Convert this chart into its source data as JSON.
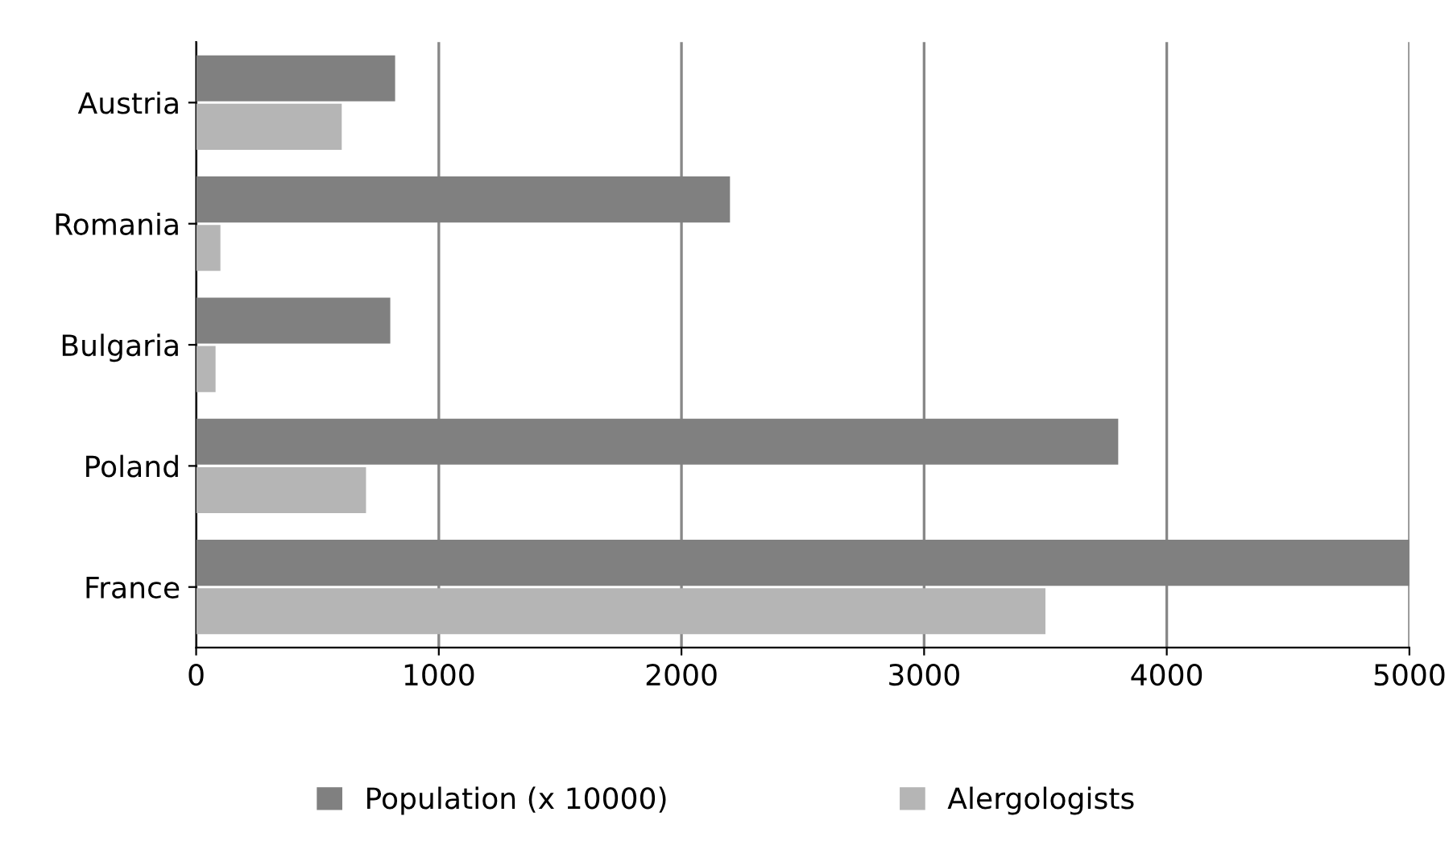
{
  "chart_data": {
    "type": "bar",
    "orientation": "horizontal",
    "categories": [
      "Austria",
      "Romania",
      "Bulgaria",
      "Poland",
      "France"
    ],
    "series": [
      {
        "name": "Population (x 10000)",
        "color": "#808080",
        "values": [
          820,
          2200,
          800,
          3800,
          5000
        ]
      },
      {
        "name": "Alergologists",
        "color": "#b5b5b5",
        "values": [
          600,
          100,
          80,
          700,
          3500
        ]
      }
    ],
    "xlim": [
      0,
      5000
    ],
    "xticks": [
      0,
      1000,
      2000,
      3000,
      4000,
      5000
    ],
    "grid": "x",
    "legend": "bottom"
  }
}
